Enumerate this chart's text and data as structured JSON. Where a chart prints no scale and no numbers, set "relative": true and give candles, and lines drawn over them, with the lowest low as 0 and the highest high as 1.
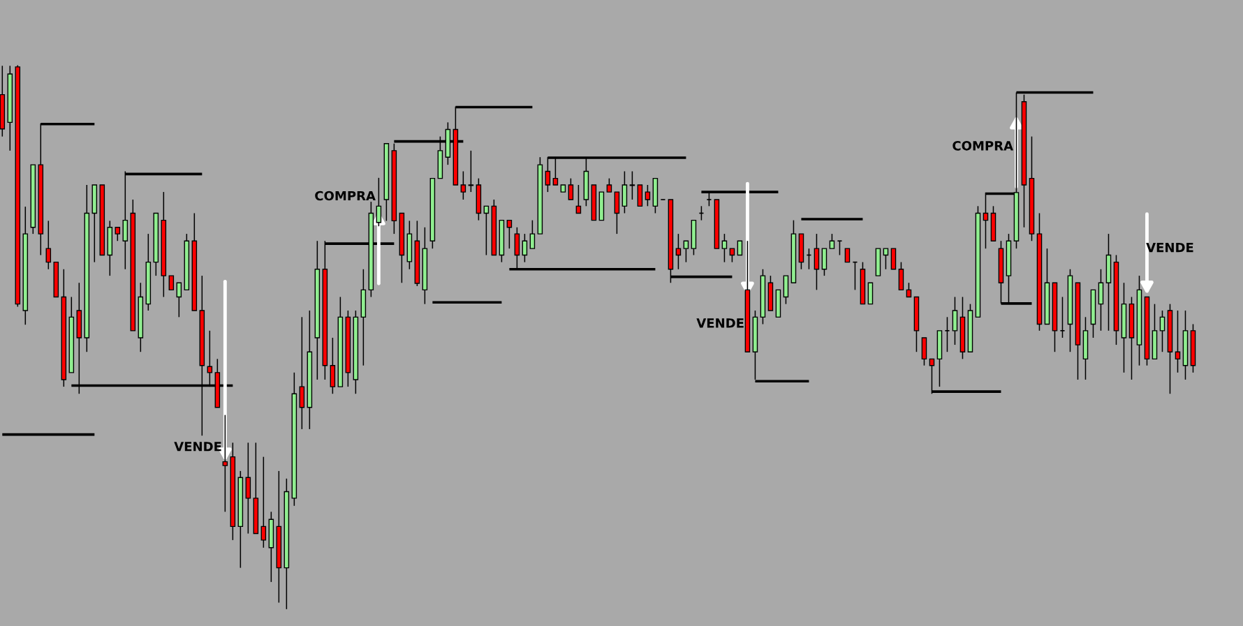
{
  "chart_data": {
    "type": "candlestick",
    "relative": true,
    "categories": [
      null,
      null,
      null,
      null,
      null,
      null,
      null,
      null,
      null,
      null,
      null,
      null,
      null,
      null,
      null,
      null,
      null,
      null,
      null,
      null,
      null,
      null,
      null,
      null,
      null,
      null,
      null,
      null,
      null,
      null,
      null,
      null,
      null,
      null,
      null,
      null,
      null,
      null,
      null,
      null,
      null,
      null,
      null,
      null,
      null,
      null,
      null,
      null,
      null,
      null,
      null,
      null,
      null,
      null,
      null,
      null,
      null,
      null,
      null,
      null,
      null,
      null,
      null,
      null,
      null,
      null,
      null,
      null,
      null,
      null,
      null,
      null,
      null,
      null,
      null,
      null,
      null,
      null,
      null,
      null,
      null,
      null,
      null,
      null,
      null,
      null,
      null,
      null,
      null,
      null,
      null,
      null,
      null,
      null,
      null,
      null,
      null,
      null,
      null,
      null,
      null,
      null,
      null,
      null,
      null,
      null,
      null,
      null,
      null,
      null,
      null,
      null,
      null,
      null,
      null,
      null,
      null,
      null,
      null,
      null,
      null,
      null,
      null,
      null,
      null,
      null,
      null,
      null,
      null,
      null,
      null,
      null,
      null,
      null,
      null,
      null,
      null,
      null,
      null,
      null,
      null,
      null,
      null,
      null,
      null,
      null,
      null,
      null,
      null,
      null,
      null,
      null,
      null,
      null,
      null,
      null
    ],
    "colors": [
      "#ff0000",
      "#90ee90",
      "#ff0000",
      "#90ee90",
      "#90ee90",
      "#ff0000",
      "#ff0000",
      "#ff0000",
      "#ff0000",
      "#90ee90",
      "#ff0000",
      "#90ee90",
      "#90ee90",
      "#ff0000",
      "#90ee90",
      "#ff0000",
      "#90ee90",
      "#ff0000",
      "#90ee90",
      "#90ee90",
      "#90ee90",
      "#ff0000",
      "#ff0000",
      "#90ee90",
      "#90ee90",
      "#ff0000",
      "#ff0000",
      "#ff0000",
      "#ff0000",
      "#ff0000",
      "#ff0000",
      "#90ee90",
      "#ff0000",
      "#ff0000",
      "#ff0000",
      "#90ee90",
      "#ff0000",
      "#90ee90",
      "#90ee90",
      "#ff0000",
      "#90ee90",
      "#90ee90",
      "#ff0000",
      "#ff0000",
      "#90ee90",
      "#ff0000",
      "#90ee90",
      "#90ee90",
      "#90ee90",
      "#90ee90",
      "#90ee90",
      "#ff0000",
      "#ff0000",
      "#90ee90",
      "#ff0000",
      "#90ee90",
      "#90ee90",
      "#90ee90",
      "#90ee90",
      "#ff0000",
      "#ff0000",
      "#90ee90",
      "#ff0000",
      "#90ee90",
      "#ff0000",
      "#90ee90",
      "#ff0000",
      "#ff0000",
      "#90ee90",
      "#90ee90",
      "#90ee90",
      "#ff0000",
      "#ff0000",
      "#90ee90",
      "#ff0000",
      "#ff0000",
      "#90ee90",
      "#ff0000",
      "#90ee90",
      "#ff0000",
      "#ff0000",
      "#90ee90",
      "#90ee90",
      "#ff0000",
      "#ff0000",
      "#90ee90",
      "#000000",
      "#ff0000",
      "#ff0000",
      "#90ee90",
      "#90ee90",
      "#000000",
      "#000000",
      "#ff0000",
      "#90ee90",
      "#ff0000",
      "#90ee90",
      "#ff0000",
      "#90ee90",
      "#90ee90",
      "#ff0000",
      "#90ee90",
      "#90ee90",
      "#90ee90",
      "#ff0000",
      "#000000",
      "#ff0000",
      "#90ee90",
      "#90ee90",
      "#000000",
      "#ff0000",
      "#000000",
      "#ff0000",
      "#90ee90",
      "#90ee90",
      "#90ee90",
      "#ff0000",
      "#ff0000",
      "#ff0000",
      "#ff0000",
      "#ff0000",
      "#ff0000",
      "#90ee90",
      "#000000",
      "#90ee90",
      "#ff0000",
      "#90ee90",
      "#90ee90",
      "#ff0000",
      "#ff0000",
      "#ff0000",
      "#90ee90",
      "#90ee90",
      "#ff0000",
      "#ff0000",
      "#ff0000",
      "#90ee90",
      "#ff0000",
      "#000000",
      "#90ee90",
      "#ff0000",
      "#90ee90",
      "#90ee90",
      "#90ee90",
      "#90ee90",
      "#ff0000",
      "#90ee90",
      "#ff0000",
      "#90ee90",
      "#ff0000",
      "#90ee90",
      "#90ee90",
      "#ff0000",
      "#ff0000",
      "#90ee90",
      "#ff0000"
    ],
    "ohlc": [
      [
        0.946,
        0.999,
        0.869,
        0.883
      ],
      [
        0.895,
        0.999,
        0.843,
        0.984
      ],
      [
        0.997,
        1,
        0.556,
        0.561
      ],
      [
        0.549,
        0.74,
        0.523,
        0.69
      ],
      [
        0.702,
        0.817,
        0.69,
        0.817
      ],
      [
        0.817,
        0.893,
        0.651,
        0.69
      ],
      [
        0.663,
        0.714,
        0.625,
        0.638
      ],
      [
        0.638,
        0.638,
        0.574,
        0.574
      ],
      [
        0.574,
        0.625,
        0.409,
        0.422
      ],
      [
        0.435,
        0.574,
        0.435,
        0.537
      ],
      [
        0.549,
        0.6,
        0.396,
        0.499
      ],
      [
        0.499,
        0.78,
        0.473,
        0.728
      ],
      [
        0.728,
        0.78,
        0.638,
        0.78
      ],
      [
        0.78,
        0.78,
        0.651,
        0.651
      ],
      [
        0.651,
        0.714,
        0.613,
        0.702
      ],
      [
        0.702,
        0.702,
        0.677,
        0.69
      ],
      [
        0.677,
        0.805,
        0.625,
        0.715
      ],
      [
        0.728,
        0.753,
        0.512,
        0.512
      ],
      [
        0.499,
        0.6,
        0.473,
        0.574
      ],
      [
        0.561,
        0.69,
        0.549,
        0.638
      ],
      [
        0.638,
        0.728,
        0.613,
        0.728
      ],
      [
        0.715,
        0.767,
        0.574,
        0.613
      ],
      [
        0.613,
        0.613,
        0.587,
        0.587
      ],
      [
        0.574,
        0.6,
        0.537,
        0.6
      ],
      [
        0.587,
        0.69,
        0.587,
        0.677
      ],
      [
        0.677,
        0.728,
        0.549,
        0.549
      ],
      [
        0.549,
        0.613,
        0.319,
        0.448
      ],
      [
        0.446,
        0.512,
        0.409,
        0.435
      ],
      [
        0.435,
        0.46,
        0.371,
        0.371
      ],
      [
        0.271,
        0.357,
        0.179,
        0.264
      ],
      [
        0.28,
        0.306,
        0.127,
        0.152
      ],
      [
        0.152,
        0.254,
        0.076,
        0.242
      ],
      [
        0.242,
        0.306,
        0.139,
        0.204
      ],
      [
        0.204,
        0.306,
        0.139,
        0.139
      ],
      [
        0.152,
        0.28,
        0.113,
        0.127
      ],
      [
        0.113,
        0.179,
        0.05,
        0.165
      ],
      [
        0.152,
        0.254,
        0.012,
        0.076
      ],
      [
        0.076,
        0.24,
        0,
        0.216
      ],
      [
        0.204,
        0.435,
        0.19,
        0.396
      ],
      [
        0.409,
        0.537,
        0.331,
        0.371
      ],
      [
        0.371,
        0.549,
        0.331,
        0.473
      ],
      [
        0.499,
        0.677,
        0.422,
        0.625
      ],
      [
        0.625,
        0.677,
        0.422,
        0.448
      ],
      [
        0.448,
        0.499,
        0.396,
        0.409
      ],
      [
        0.409,
        0.574,
        0.409,
        0.537
      ],
      [
        0.537,
        0.549,
        0.409,
        0.435
      ],
      [
        0.422,
        0.549,
        0.396,
        0.537
      ],
      [
        0.537,
        0.625,
        0.448,
        0.587
      ],
      [
        0.587,
        0.749,
        0.574,
        0.728
      ],
      [
        0.711,
        0.793,
        0.704,
        0.741
      ],
      [
        0.753,
        0.856,
        0.714,
        0.856
      ],
      [
        0.843,
        0.856,
        0.69,
        0.714
      ],
      [
        0.728,
        0.728,
        0.6,
        0.651
      ],
      [
        0.639,
        0.714,
        0.625,
        0.69
      ],
      [
        0.677,
        0.714,
        0.594,
        0.599
      ],
      [
        0.587,
        0.702,
        0.561,
        0.663
      ],
      [
        0.677,
        0.792,
        0.663,
        0.792
      ],
      [
        0.792,
        0.869,
        0.792,
        0.843
      ],
      [
        0.831,
        0.895,
        0.817,
        0.882
      ],
      [
        0.882,
        0.924,
        0.78,
        0.78
      ],
      [
        0.78,
        0.805,
        0.753,
        0.767
      ],
      [
        0.779,
        0.843,
        0.767,
        0.78
      ],
      [
        0.78,
        0.792,
        0.715,
        0.728
      ],
      [
        0.728,
        0.741,
        0.651,
        0.741
      ],
      [
        0.741,
        0.753,
        0.651,
        0.651
      ],
      [
        0.651,
        0.715,
        0.638,
        0.715
      ],
      [
        0.715,
        0.715,
        0.663,
        0.702
      ],
      [
        0.69,
        0.702,
        0.625,
        0.651
      ],
      [
        0.651,
        0.69,
        0.638,
        0.677
      ],
      [
        0.663,
        0.715,
        0.663,
        0.69
      ],
      [
        0.69,
        0.831,
        0.69,
        0.817
      ],
      [
        0.805,
        0.831,
        0.767,
        0.78
      ],
      [
        0.792,
        0.831,
        0.78,
        0.78
      ],
      [
        0.767,
        0.78,
        0.767,
        0.78
      ],
      [
        0.78,
        0.792,
        0.753,
        0.753
      ],
      [
        0.741,
        0.78,
        0.728,
        0.728
      ],
      [
        0.753,
        0.831,
        0.741,
        0.805
      ],
      [
        0.78,
        0.78,
        0.715,
        0.715
      ],
      [
        0.715,
        0.767,
        0.715,
        0.767
      ],
      [
        0.78,
        0.792,
        0.767,
        0.767
      ],
      [
        0.767,
        0.767,
        0.69,
        0.728
      ],
      [
        0.741,
        0.805,
        0.728,
        0.78
      ],
      [
        0.779,
        0.805,
        0.753,
        0.78
      ],
      [
        0.78,
        0.78,
        0.741,
        0.741
      ],
      [
        0.767,
        0.78,
        0.741,
        0.753
      ],
      [
        0.741,
        0.792,
        0.728,
        0.792
      ],
      [
        0.753,
        0.753,
        0.753,
        0.753
      ],
      [
        0.753,
        0.753,
        0.6,
        0.625
      ],
      [
        0.663,
        0.69,
        0.625,
        0.651
      ],
      [
        0.663,
        0.677,
        0.638,
        0.677
      ],
      [
        0.663,
        0.715,
        0.651,
        0.715
      ],
      [
        0.728,
        0.741,
        0.715,
        0.728
      ],
      [
        0.753,
        0.766,
        0.741,
        0.753
      ],
      [
        0.753,
        0.753,
        0.663,
        0.663
      ],
      [
        0.663,
        0.69,
        0.638,
        0.677
      ],
      [
        0.663,
        0.663,
        0.638,
        0.651
      ],
      [
        0.651,
        0.677,
        0.651,
        0.677
      ],
      [
        0.587,
        0.677,
        0.473,
        0.473
      ],
      [
        0.473,
        0.549,
        0.422,
        0.537
      ],
      [
        0.537,
        0.625,
        0.524,
        0.613
      ],
      [
        0.6,
        0.613,
        0.549,
        0.549
      ],
      [
        0.537,
        0.587,
        0.537,
        0.587
      ],
      [
        0.574,
        0.613,
        0.561,
        0.613
      ],
      [
        0.6,
        0.715,
        0.6,
        0.69
      ],
      [
        0.69,
        0.69,
        0.625,
        0.638
      ],
      [
        0.651,
        0.663,
        0.625,
        0.651
      ],
      [
        0.663,
        0.69,
        0.587,
        0.625
      ],
      [
        0.625,
        0.663,
        0.613,
        0.663
      ],
      [
        0.663,
        0.69,
        0.663,
        0.677
      ],
      [
        0.677,
        0.677,
        0.651,
        0.677
      ],
      [
        0.663,
        0.663,
        0.638,
        0.638
      ],
      [
        0.638,
        0.638,
        0.587,
        0.638
      ],
      [
        0.625,
        0.638,
        0.561,
        0.561
      ],
      [
        0.561,
        0.6,
        0.561,
        0.6
      ],
      [
        0.613,
        0.663,
        0.613,
        0.663
      ],
      [
        0.651,
        0.663,
        0.625,
        0.663
      ],
      [
        0.663,
        0.663,
        0.625,
        0.625
      ],
      [
        0.625,
        0.638,
        0.587,
        0.587
      ],
      [
        0.587,
        0.6,
        0.574,
        0.574
      ],
      [
        0.574,
        0.574,
        0.473,
        0.512
      ],
      [
        0.499,
        0.499,
        0.448,
        0.46
      ],
      [
        0.46,
        0.46,
        0.396,
        0.448
      ],
      [
        0.46,
        0.512,
        0.409,
        0.512
      ],
      [
        0.512,
        0.537,
        0.473,
        0.512
      ],
      [
        0.512,
        0.574,
        0.486,
        0.549
      ],
      [
        0.537,
        0.574,
        0.46,
        0.473
      ],
      [
        0.473,
        0.561,
        0.473,
        0.549
      ],
      [
        0.537,
        0.741,
        0.537,
        0.728
      ],
      [
        0.728,
        0.766,
        0.663,
        0.715
      ],
      [
        0.728,
        0.741,
        0.677,
        0.677
      ],
      [
        0.663,
        0.677,
        0.562,
        0.6
      ],
      [
        0.613,
        0.69,
        0.562,
        0.677
      ],
      [
        0.677,
        0.95,
        0.663,
        0.766
      ],
      [
        0.933,
        0.946,
        0.702,
        0.78
      ],
      [
        0.792,
        0.869,
        0.677,
        0.69
      ],
      [
        0.69,
        0.728,
        0.512,
        0.524
      ],
      [
        0.524,
        0.663,
        0.524,
        0.6
      ],
      [
        0.6,
        0.6,
        0.473,
        0.512
      ],
      [
        0.512,
        0.574,
        0.499,
        0.512
      ],
      [
        0.524,
        0.625,
        0.473,
        0.613
      ],
      [
        0.6,
        0.6,
        0.422,
        0.486
      ],
      [
        0.46,
        0.537,
        0.422,
        0.512
      ],
      [
        0.524,
        0.587,
        0.499,
        0.587
      ],
      [
        0.561,
        0.625,
        0.512,
        0.6
      ],
      [
        0.6,
        0.69,
        0.512,
        0.651
      ],
      [
        0.638,
        0.651,
        0.486,
        0.512
      ],
      [
        0.499,
        0.6,
        0.435,
        0.561
      ],
      [
        0.561,
        0.574,
        0.422,
        0.499
      ],
      [
        0.486,
        0.613,
        0.448,
        0.587
      ],
      [
        0.574,
        0.574,
        0.448,
        0.46
      ],
      [
        0.46,
        0.561,
        0.46,
        0.512
      ],
      [
        0.512,
        0.549,
        0.473,
        0.537
      ],
      [
        0.549,
        0.561,
        0.396,
        0.473
      ],
      [
        0.473,
        0.549,
        0.435,
        0.46
      ],
      [
        0.448,
        0.549,
        0.422,
        0.512
      ],
      [
        0.512,
        0.524,
        0.435,
        0.448
      ]
    ],
    "series": [
      {
        "type": "line",
        "color": "#000000",
        "values": [
          0.321,
          0.321,
          0.321,
          0.321,
          0.321,
          0.321,
          0.321,
          0.321,
          0.321,
          0.321,
          0.321,
          0.321,
          0.321,
          null,
          null,
          null,
          0.8,
          0.8,
          0.8,
          0.8,
          0.8,
          0.8,
          0.8,
          0.8,
          0.8,
          0.8,
          0.8,
          null,
          null,
          null,
          null,
          null,
          null,
          null,
          null,
          null,
          null,
          null,
          null,
          null,
          null,
          null,
          0.672,
          0.672,
          0.672,
          0.672,
          0.672,
          0.672,
          0.672,
          0.672,
          0.672,
          0.672,
          null,
          null,
          null,
          null,
          null,
          null,
          null,
          0.923,
          0.923,
          0.923,
          0.923,
          0.923,
          0.923,
          0.923,
          0.923,
          0.923,
          0.923,
          0.923,
          null,
          0.83,
          0.83,
          0.83,
          0.83,
          0.83,
          0.83,
          0.83,
          0.83,
          0.83,
          0.83,
          0.83,
          0.83,
          0.83,
          0.83,
          0.83,
          0.83,
          0.83,
          0.83,
          0.83,
          null,
          null,
          null,
          null,
          null,
          null,
          null,
          null,
          0.419,
          0.419,
          0.419,
          0.419,
          0.419,
          0.419,
          0.419,
          0.419,
          null,
          null,
          null,
          null,
          null,
          null,
          null,
          null,
          null,
          null,
          null,
          null,
          null,
          null,
          null,
          0.4,
          0.4,
          0.4,
          0.4,
          0.4,
          0.4,
          0.4,
          0.4,
          0.4,
          0.4,
          null,
          0.95,
          0.95,
          0.95,
          0.95,
          0.95,
          0.95,
          0.95,
          0.95,
          0.95,
          0.95,
          0.95,
          null,
          null,
          null,
          null,
          null,
          null,
          null,
          null,
          null,
          null,
          null,
          null,
          null
        ]
      },
      {
        "type": "line",
        "color": "#000000",
        "values": [
          null,
          null,
          null,
          null,
          null,
          0.892,
          0.892,
          0.892,
          0.892,
          0.892,
          0.892,
          0.892,
          0.892,
          null,
          null,
          null,
          null,
          null,
          null,
          null,
          null,
          null,
          null,
          null,
          null,
          null,
          null,
          null,
          null,
          null,
          null,
          null,
          null,
          null,
          null,
          null,
          null,
          null,
          null,
          null,
          null,
          null,
          null,
          null,
          null,
          null,
          null,
          null,
          null,
          null,
          null,
          0.86,
          0.86,
          0.86,
          0.86,
          0.86,
          0.86,
          0.86,
          0.86,
          0.86,
          0.86,
          null,
          null,
          null,
          null,
          null,
          0.625,
          0.625,
          0.625,
          0.625,
          0.625,
          0.625,
          0.625,
          0.625,
          0.625,
          0.625,
          0.625,
          0.625,
          0.625,
          0.625,
          0.625,
          0.625,
          0.625,
          0.625,
          0.625,
          0.625,
          null,
          0.611,
          0.611,
          0.611,
          0.611,
          0.611,
          0.611,
          0.611,
          0.611,
          0.611,
          null,
          null,
          null,
          null,
          null,
          null,
          null,
          null,
          0.717,
          0.717,
          0.717,
          0.717,
          0.717,
          0.717,
          0.717,
          0.717,
          0.717,
          null,
          null,
          null,
          null,
          null,
          null,
          null,
          null,
          null,
          null,
          null,
          null,
          null,
          null,
          null,
          0.764,
          0.764,
          0.764,
          0.764,
          0.764,
          null,
          null,
          null,
          null,
          null,
          null,
          null,
          null,
          null,
          null,
          null,
          null,
          null,
          null,
          null,
          null,
          null,
          null,
          null,
          null,
          null,
          null,
          null
        ]
      },
      {
        "type": "line",
        "color": "#000000",
        "values": [
          null,
          null,
          null,
          null,
          null,
          null,
          null,
          null,
          null,
          0.411,
          0.411,
          0.411,
          0.411,
          0.411,
          0.411,
          0.411,
          0.411,
          0.411,
          0.411,
          0.411,
          0.411,
          0.411,
          0.411,
          0.411,
          0.411,
          0.411,
          0.411,
          0.411,
          0.411,
          0.411,
          0.411,
          null,
          null,
          null,
          null,
          null,
          null,
          null,
          null,
          null,
          null,
          null,
          null,
          null,
          null,
          null,
          null,
          null,
          null,
          null,
          null,
          null,
          null,
          null,
          null,
          null,
          0.564,
          0.564,
          0.564,
          0.564,
          0.564,
          0.564,
          0.564,
          0.564,
          0.564,
          0.564,
          null,
          null,
          null,
          null,
          null,
          null,
          null,
          null,
          null,
          null,
          null,
          null,
          null,
          null,
          null,
          null,
          null,
          null,
          null,
          null,
          null,
          null,
          null,
          null,
          null,
          0.767,
          0.767,
          0.767,
          0.767,
          0.767,
          0.767,
          0.767,
          0.767,
          0.767,
          0.767,
          0.767,
          null,
          null,
          null,
          null,
          null,
          null,
          null,
          null,
          null,
          null,
          null,
          null,
          null,
          null,
          null,
          null,
          null,
          null,
          null,
          null,
          null,
          null,
          null,
          null,
          null,
          null,
          null,
          null,
          0.562,
          0.562,
          0.562,
          0.562,
          0.562,
          null,
          null,
          null,
          null,
          null,
          null,
          null,
          null,
          null,
          null,
          null,
          null,
          null,
          null,
          null,
          null,
          null,
          null,
          null,
          null,
          null
        ]
      }
    ],
    "annotations": [
      "VENDE",
      "COMPRA",
      "VENDE",
      "COMPRA",
      "VENDE"
    ]
  }
}
